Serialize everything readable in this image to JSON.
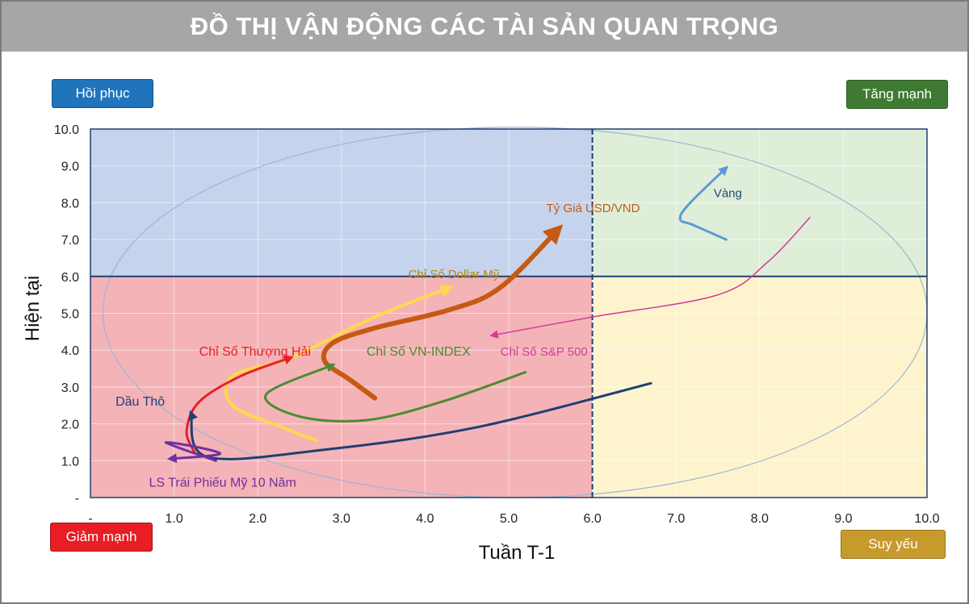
{
  "header": {
    "title": "ĐỒ THỊ VẬN ĐỘNG CÁC TÀI SẢN QUAN TRỌNG"
  },
  "quadrants": {
    "top_left": "Hồi phục",
    "top_right": "Tăng mạnh",
    "bottom_left": "Giảm mạnh",
    "bottom_right": "Suy yếu"
  },
  "colors": {
    "title_bar": "#a5a6a8",
    "recover_bg": "#c5d3ec",
    "strong_bg": "#dfeed9",
    "drop_bg": "#f4b3b7",
    "weak_bg": "#fdf4cd"
  },
  "chart_data": {
    "type": "line",
    "xlabel": "Tuần T-1",
    "ylabel": "Hiện tại",
    "xlim": [
      0,
      10
    ],
    "ylim": [
      0,
      10
    ],
    "x_ticks": [
      "-",
      "1.0",
      "2.0",
      "3.0",
      "4.0",
      "5.0",
      "6.0",
      "7.0",
      "8.0",
      "9.0",
      "10.0"
    ],
    "y_ticks": [
      "-",
      "1.0",
      "2.0",
      "3.0",
      "4.0",
      "5.0",
      "6.0",
      "7.0",
      "8.0",
      "9.0",
      "10.0"
    ],
    "dividers": {
      "x": 6.0,
      "y": 6.0
    },
    "grid": true,
    "series": [
      {
        "name": "Vàng",
        "color": "#5b9bd5",
        "points": [
          [
            7.6,
            7.0
          ],
          [
            7.2,
            7.4
          ],
          [
            7.05,
            7.55
          ],
          [
            7.15,
            7.95
          ],
          [
            7.6,
            8.95
          ]
        ]
      },
      {
        "name": "Tỷ Giá USD/VND",
        "color": "#c55a11",
        "points": [
          [
            3.4,
            2.7
          ],
          [
            3.1,
            3.2
          ],
          [
            2.8,
            3.7
          ],
          [
            2.9,
            4.2
          ],
          [
            3.4,
            4.6
          ],
          [
            4.3,
            5.1
          ],
          [
            4.9,
            5.7
          ],
          [
            5.6,
            7.3
          ]
        ]
      },
      {
        "name": "Chỉ Số Dollar Mỹ",
        "color": "#ffd84d",
        "points": [
          [
            2.7,
            1.55
          ],
          [
            2.3,
            1.9
          ],
          [
            1.7,
            2.5
          ],
          [
            1.7,
            3.3
          ],
          [
            2.4,
            3.8
          ],
          [
            3.4,
            4.9
          ],
          [
            4.3,
            5.7
          ]
        ]
      },
      {
        "name": "Chỉ Số Thượng Hải",
        "color": "#e5202a",
        "points": [
          [
            1.25,
            1.2
          ],
          [
            1.15,
            1.8
          ],
          [
            1.3,
            2.6
          ],
          [
            1.8,
            3.3
          ],
          [
            2.4,
            3.8
          ]
        ]
      },
      {
        "name": "Chỉ Số VN-INDEX",
        "color": "#4e8a32",
        "points": [
          [
            5.2,
            3.4
          ],
          [
            4.2,
            2.6
          ],
          [
            3.3,
            2.1
          ],
          [
            2.5,
            2.2
          ],
          [
            2.1,
            2.8
          ],
          [
            2.9,
            3.6
          ]
        ]
      },
      {
        "name": "Chỉ Số S&P 500",
        "color": "#d63a9a",
        "points": [
          [
            8.6,
            7.6
          ],
          [
            8.1,
            6.4
          ],
          [
            7.5,
            5.5
          ],
          [
            6.0,
            4.9
          ],
          [
            4.8,
            4.4
          ]
        ]
      },
      {
        "name": "Dầu Thô",
        "color": "#1f3f73",
        "points": [
          [
            6.7,
            3.1
          ],
          [
            4.6,
            1.9
          ],
          [
            2.8,
            1.3
          ],
          [
            1.4,
            1.1
          ],
          [
            1.2,
            2.3
          ]
        ]
      },
      {
        "name": "LS Trái Phiếu Mỹ 10 Năm",
        "color": "#7030a0",
        "points": [
          [
            1.5,
            1.0
          ],
          [
            0.9,
            1.5
          ],
          [
            1.55,
            1.2
          ],
          [
            0.95,
            1.05
          ]
        ]
      }
    ]
  }
}
